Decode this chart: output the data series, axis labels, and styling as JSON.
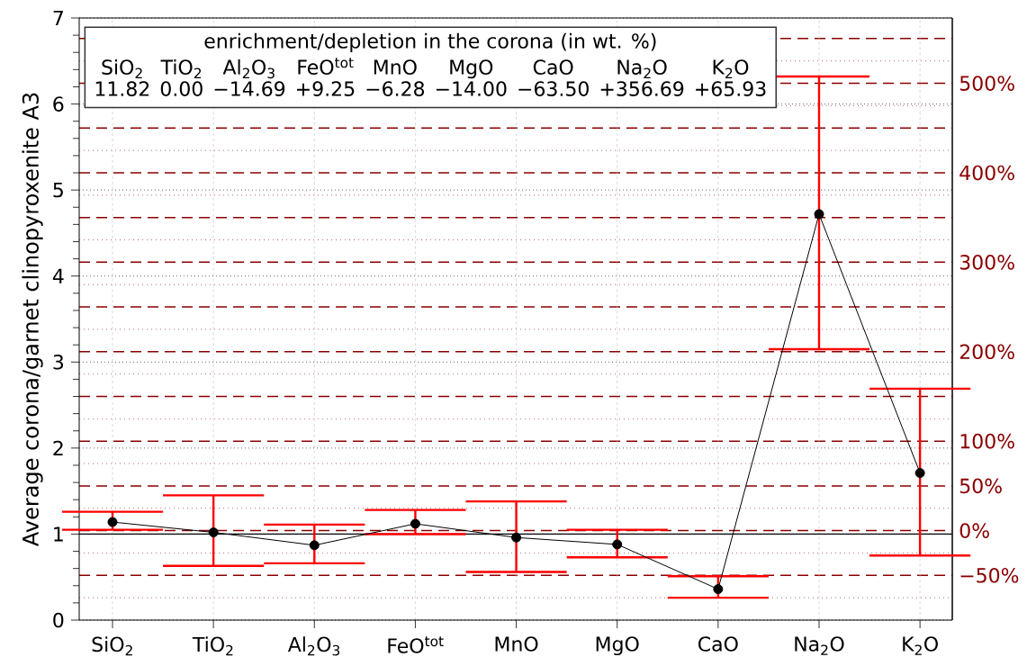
{
  "chart_data": {
    "type": "line",
    "ylabel": "Average corona/garnet clinopyroxenite A3",
    "categories": [
      "SiO$_{2}$",
      "TiO$_{2}$",
      "Al$_{2}$O$_{3}$",
      "FeO$^{tot}$",
      "MnO",
      "MgO",
      "CaO",
      "Na$_{2}$O",
      "K$_{2}$O"
    ],
    "series": [
      {
        "color": "#000000",
        "values": [
          1.14,
          1.02,
          0.87,
          1.12,
          0.96,
          0.88,
          0.36,
          4.72,
          1.71
        ],
        "errors": [
          [
            1.05,
            1.26
          ],
          [
            0.63,
            1.45
          ],
          [
            0.66,
            1.11
          ],
          [
            1.0,
            1.28
          ],
          [
            0.56,
            1.38
          ],
          [
            0.73,
            1.05
          ],
          [
            0.26,
            0.51
          ],
          [
            3.15,
            6.32
          ],
          [
            0.75,
            2.69
          ]
        ]
      }
    ],
    "ylim": [
      0,
      7
    ],
    "yticks": [
      0,
      1,
      2,
      3,
      4,
      5,
      6,
      7
    ],
    "y2lim": [
      -100,
      573
    ],
    "y2ticks": [
      {
        "value": -75,
        "label": null
      },
      {
        "value": -50,
        "label": "−50%"
      },
      {
        "value": -25,
        "label": null
      },
      {
        "value": 0,
        "label": "0%"
      },
      {
        "value": 25,
        "label": null
      },
      {
        "value": 50,
        "label": "50%"
      },
      {
        "value": 75,
        "label": null
      },
      {
        "value": 100,
        "label": "100%"
      },
      {
        "value": 125,
        "label": null
      },
      {
        "value": 150,
        "label": null
      },
      {
        "value": 175,
        "label": null
      },
      {
        "value": 200,
        "label": "200%"
      },
      {
        "value": 225,
        "label": null
      },
      {
        "value": 250,
        "label": null
      },
      {
        "value": 275,
        "label": null
      },
      {
        "value": 300,
        "label": "300%"
      },
      {
        "value": 325,
        "label": null
      },
      {
        "value": 350,
        "label": null
      },
      {
        "value": 375,
        "label": null
      },
      {
        "value": 400,
        "label": "400%"
      },
      {
        "value": 425,
        "label": null
      },
      {
        "value": 450,
        "label": null
      },
      {
        "value": 475,
        "label": null
      },
      {
        "value": 500,
        "label": "500%"
      },
      {
        "value": 525,
        "label": null
      },
      {
        "value": 550,
        "label": null
      }
    ],
    "ref_lines": [
      {
        "axis": "y",
        "value": 1,
        "color": "#000000"
      }
    ],
    "grid": true,
    "marker": "circle",
    "line_style": "solid",
    "annotations": [
      "enrichment/depletion in the corona (in wt. %)",
      "SiO$_{2}$",
      "TiO$_{2}$",
      "Al$_{2}$O$_{3}$",
      "FeO$^{tot}$",
      "MnO",
      "MgO",
      "CaO",
      "Na$_{2}$O",
      "K$_{2}$O",
      "11.82",
      "0.00",
      "−14.69",
      "+9.25",
      "−6.28",
      "−14.00",
      "−63.50",
      "+356.69",
      "+65.93"
    ]
  }
}
